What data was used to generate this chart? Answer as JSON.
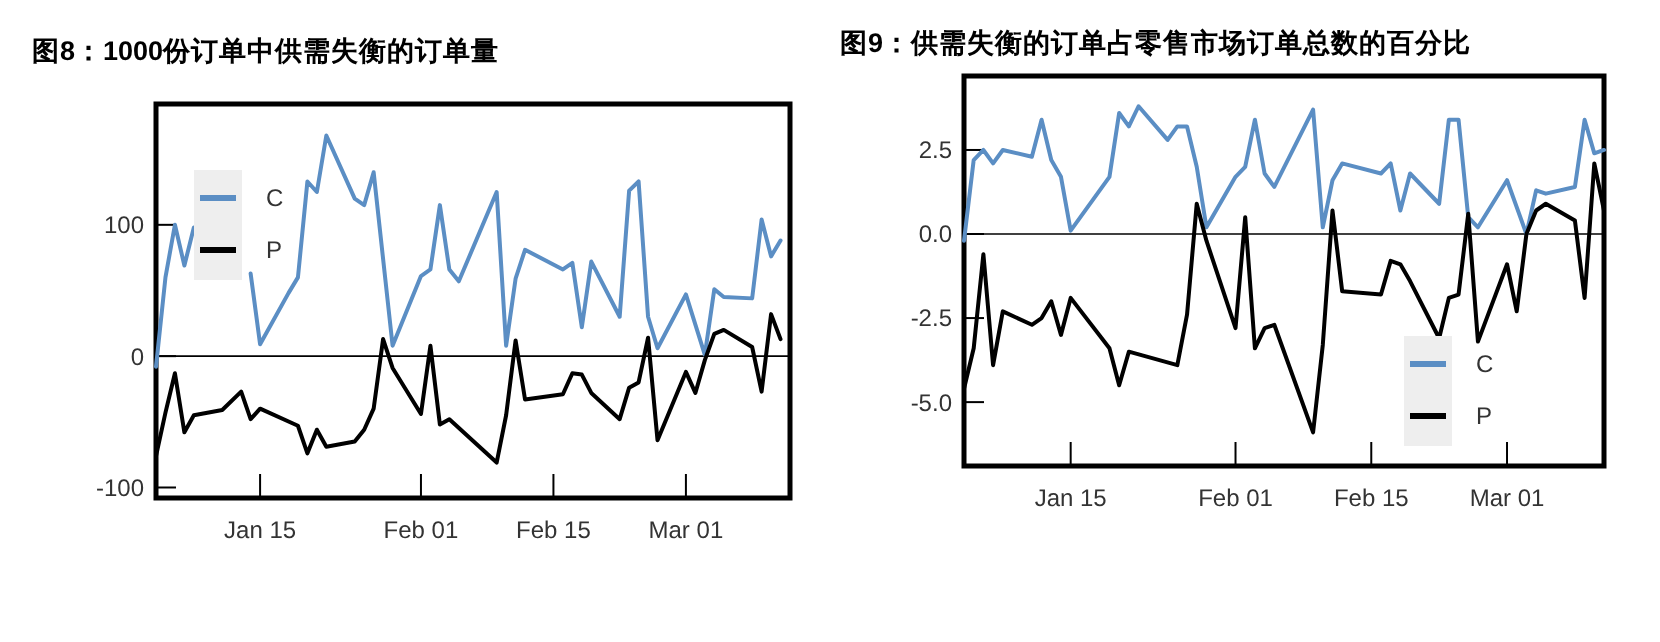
{
  "chart_data": [
    {
      "type": "line",
      "title": "图8：1000份订单中供需失衡的订单量",
      "legend": "top left",
      "ylim": [
        -108,
        192
      ],
      "yticks": [
        -100,
        0,
        100
      ],
      "xlim": [
        "--01-04",
        "--03-12"
      ],
      "xticks": [
        {
          "value": "--01-15",
          "label": "Jan 15"
        },
        {
          "value": "--02-01",
          "label": "Feb 01"
        },
        {
          "value": "--02-15",
          "label": "Feb 15"
        },
        {
          "value": "--03-01",
          "label": "Mar 01"
        }
      ],
      "ref_lines": [
        {
          "axis": "y",
          "value": 0,
          "color": "#000000"
        }
      ],
      "series": [
        {
          "name": "C",
          "color": "#5b8ec4",
          "x": [
            "--01-04",
            "--01-05",
            "--01-06",
            "--01-07",
            "--01-08",
            "--01-09",
            "--01-11",
            "--01-14",
            "--01-15",
            "--01-18",
            "--01-19",
            "--01-20",
            "--01-21",
            "--01-22",
            "--01-25",
            "--01-26",
            "--01-27",
            "--01-29",
            "--02-01",
            "--02-02",
            "--02-03",
            "--02-04",
            "--02-05",
            "--02-09",
            "--02-10",
            "--02-11",
            "--02-12",
            "--02-16",
            "--02-17",
            "--02-18",
            "--02-19",
            "--02-22",
            "--02-23",
            "--02-24",
            "--02-25",
            "--02-26",
            "--03-01",
            "--03-03",
            "--03-04",
            "--03-05",
            "--03-08",
            "--03-09",
            "--03-10",
            "--03-11"
          ],
          "values": [
            -8,
            60,
            100,
            69,
            98,
            null,
            null,
            63,
            9,
            48,
            60,
            133,
            125,
            168,
            120,
            115,
            140,
            8,
            61,
            66,
            115,
            66,
            57,
            125,
            8,
            59,
            81,
            66,
            71,
            22,
            72,
            30,
            126,
            133,
            30,
            6,
            47,
            1,
            51,
            45,
            44,
            104,
            76,
            88
          ]
        },
        {
          "name": "P",
          "color": "#000000",
          "x": [
            "--01-04",
            "--01-05",
            "--01-06",
            "--01-07",
            "--01-08",
            "--01-11",
            "--01-13",
            "--01-14",
            "--01-15",
            "--01-19",
            "--01-20",
            "--01-21",
            "--01-22",
            "--01-25",
            "--01-26",
            "--01-27",
            "--01-28",
            "--01-29",
            "--02-01",
            "--02-02",
            "--02-03",
            "--02-04",
            "--02-09",
            "--02-10",
            "--02-11",
            "--02-12",
            "--02-16",
            "--02-17",
            "--02-18",
            "--02-19",
            "--02-22",
            "--02-23",
            "--02-24",
            "--02-25",
            "--02-26",
            "--03-01",
            "--03-02",
            "--03-03",
            "--03-04",
            "--03-05",
            "--03-08",
            "--03-09",
            "--03-10",
            "--03-11"
          ],
          "values": [
            -76,
            -43,
            -13,
            -58,
            -45,
            -41,
            -27,
            -48,
            -40,
            -53,
            -74,
            -56,
            -69,
            -65,
            -56,
            -40,
            13,
            -9,
            -44,
            8,
            -52,
            -48,
            -81,
            -45,
            12,
            -33,
            -29,
            -13,
            -14,
            -28,
            -48,
            -24,
            -20,
            14,
            -64,
            -12,
            -28,
            -3,
            17,
            20,
            7,
            -27,
            32,
            13
          ]
        }
      ]
    },
    {
      "type": "line",
      "title": "图9：供需失衡的订单占零售市场订单总数的百分比",
      "legend": "bottom right",
      "ylim": [
        -6.9,
        4.7
      ],
      "yticks": [
        {
          "value": -5,
          "label": "-5.0"
        },
        -2.5,
        {
          "value": 0,
          "label": "0.0"
        },
        2.5
      ],
      "xlim": [
        "--01-04",
        "--03-11"
      ],
      "xticks": [
        {
          "value": "--01-15",
          "label": "Jan 15"
        },
        {
          "value": "--02-01",
          "label": "Feb 01"
        },
        {
          "value": "--02-15",
          "label": "Feb 15"
        },
        {
          "value": "--03-01",
          "label": "Mar 01"
        }
      ],
      "ref_lines": [
        {
          "axis": "y",
          "value": 0,
          "color": "#000000"
        }
      ],
      "series": [
        {
          "name": "C",
          "color": "#5b8ec4",
          "x": [
            "--01-04",
            "--01-05",
            "--01-06",
            "--01-07",
            "--01-08",
            "--01-11",
            "--01-12",
            "--01-13",
            "--01-14",
            "--01-15",
            "--01-19",
            "--01-20",
            "--01-21",
            "--01-22",
            "--01-25",
            "--01-26",
            "--01-27",
            "--01-28",
            "--01-29",
            "--02-01",
            "--02-02",
            "--02-03",
            "--02-04",
            "--02-05",
            "--02-09",
            "--02-10",
            "--02-11",
            "--02-12",
            "--02-16",
            "--02-17",
            "--02-18",
            "--02-19",
            "--02-22",
            "--02-23",
            "--02-24",
            "--02-25",
            "--02-26",
            "--03-01",
            "--03-03",
            "--03-04",
            "--03-05",
            "--03-08",
            "--03-09",
            "--03-10",
            "--03-11"
          ],
          "values": [
            -0.2,
            2.2,
            2.5,
            2.1,
            2.5,
            2.3,
            3.4,
            2.2,
            1.7,
            0.1,
            1.7,
            3.6,
            3.2,
            3.8,
            2.8,
            3.2,
            3.2,
            2.0,
            0.2,
            1.7,
            2.0,
            3.4,
            1.8,
            1.4,
            3.7,
            0.2,
            1.6,
            2.1,
            1.8,
            2.1,
            0.7,
            1.8,
            0.9,
            3.4,
            3.4,
            0.5,
            0.2,
            1.6,
            0.0,
            1.3,
            1.2,
            1.4,
            3.4,
            2.4,
            2.5
          ]
        },
        {
          "name": "P",
          "color": "#000000",
          "x": [
            "--01-04",
            "--01-05",
            "--01-06",
            "--01-07",
            "--01-08",
            "--01-11",
            "--01-12",
            "--01-13",
            "--01-14",
            "--01-15",
            "--01-19",
            "--01-20",
            "--01-21",
            "--01-26",
            "--01-27",
            "--01-28",
            "--01-29",
            "--02-01",
            "--02-02",
            "--02-03",
            "--02-04",
            "--02-05",
            "--02-09",
            "--02-10",
            "--02-11",
            "--02-12",
            "--02-16",
            "--02-17",
            "--02-18",
            "--02-19",
            "--02-22",
            "--02-23",
            "--02-24",
            "--02-25",
            "--02-26",
            "--03-01",
            "--03-02",
            "--03-03",
            "--03-04",
            "--03-05",
            "--03-08",
            "--03-09",
            "--03-10",
            "--03-11"
          ],
          "values": [
            -4.6,
            -3.4,
            -0.6,
            -3.9,
            -2.3,
            -2.7,
            -2.5,
            -2.0,
            -3.0,
            -1.9,
            -3.4,
            -4.5,
            -3.5,
            -3.9,
            -2.4,
            0.9,
            -0.2,
            -2.8,
            0.5,
            -3.4,
            -2.8,
            -2.7,
            -5.9,
            -3.3,
            0.7,
            -1.7,
            -1.8,
            -0.8,
            -0.9,
            -1.4,
            -3.1,
            -1.9,
            -1.8,
            0.6,
            -3.2,
            -0.9,
            -2.3,
            0.0,
            0.7,
            0.9,
            0.4,
            -1.9,
            2.1,
            0.7
          ]
        }
      ]
    }
  ]
}
